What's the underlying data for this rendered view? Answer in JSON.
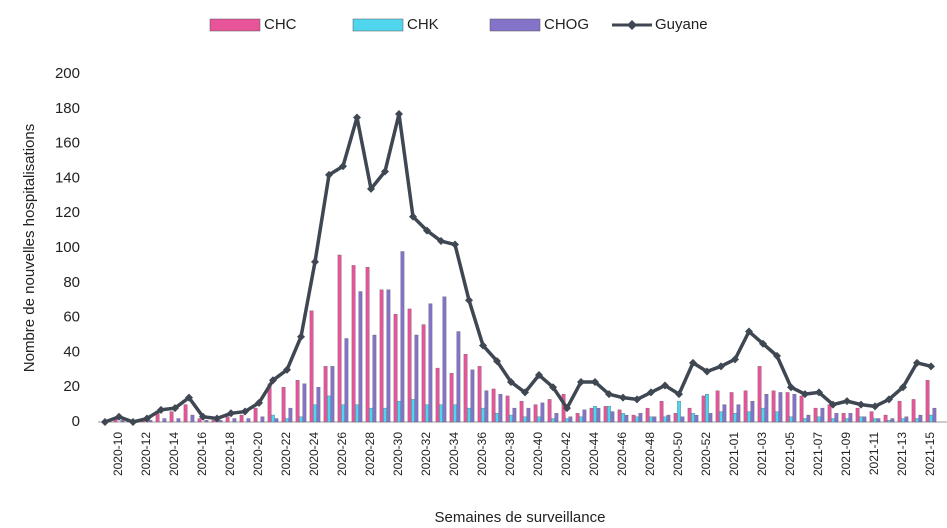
{
  "chart_data": {
    "type": "bar_line",
    "y_label": "Nombre de nouvelles hospitalisations",
    "x_label": "Semaines de surveillance",
    "categories": [
      null,
      "2020-10",
      null,
      "2020-12",
      null,
      "2020-14",
      null,
      "2020-16",
      null,
      "2020-18",
      null,
      "2020-20",
      null,
      "2020-22",
      null,
      "2020-24",
      null,
      "2020-26",
      null,
      "2020-28",
      null,
      "2020-30",
      null,
      "2020-32",
      null,
      "2020-34",
      null,
      "2020-36",
      null,
      "2020-38",
      null,
      "2020-40",
      null,
      "2020-42",
      null,
      "2020-44",
      null,
      "2020-46",
      null,
      "2020-48",
      null,
      "2020-50",
      null,
      "2020-52",
      null,
      "2021-01",
      null,
      "2021-03",
      null,
      "2021-05",
      null,
      "2021-07",
      null,
      "2021-09",
      null,
      "2021-11",
      null,
      "2021-13",
      null,
      "2021-15"
    ],
    "series": [
      {
        "name": "CHC",
        "type": "bar",
        "color": "#e8549a",
        "values": [
          0,
          2,
          0,
          1,
          5,
          6,
          10,
          2,
          1,
          3,
          4,
          8,
          22,
          20,
          24,
          64,
          32,
          96,
          90,
          89,
          76,
          62,
          65,
          56,
          31,
          28,
          39,
          32,
          19,
          15,
          12,
          10,
          13,
          16,
          5,
          8,
          9,
          7,
          4,
          8,
          12,
          5,
          8,
          15,
          18,
          17,
          18,
          32,
          18,
          17,
          15,
          8,
          10,
          5,
          8,
          6,
          4,
          12,
          13,
          24
        ]
      },
      {
        "name": "CHK",
        "type": "bar",
        "color": "#4fd6ee",
        "values": [
          0,
          0,
          0,
          0,
          0,
          0,
          0,
          0,
          0,
          0,
          0,
          0,
          4,
          2,
          3,
          10,
          15,
          10,
          10,
          8,
          8,
          12,
          13,
          10,
          10,
          10,
          8,
          8,
          5,
          4,
          3,
          3,
          2,
          2,
          3,
          9,
          9,
          5,
          3,
          3,
          3,
          12,
          5,
          16,
          6,
          5,
          6,
          8,
          6,
          3,
          2,
          3,
          2,
          2,
          3,
          2,
          1,
          2,
          2,
          4
        ]
      },
      {
        "name": "CHOG",
        "type": "bar",
        "color": "#8473c9",
        "values": [
          0,
          1,
          0,
          1,
          2,
          2,
          4,
          1,
          1,
          2,
          2,
          3,
          2,
          8,
          22,
          20,
          32,
          48,
          75,
          50,
          76,
          98,
          50,
          68,
          72,
          52,
          30,
          18,
          16,
          8,
          8,
          11,
          5,
          3,
          7,
          8,
          6,
          4,
          5,
          3,
          4,
          3,
          4,
          5,
          10,
          10,
          12,
          16,
          17,
          16,
          4,
          8,
          5,
          5,
          3,
          2,
          2,
          3,
          4,
          8
        ]
      },
      {
        "name": "Guyane",
        "type": "line",
        "color": "#3e4752",
        "values": [
          0,
          3,
          0,
          2,
          7,
          8,
          14,
          3,
          2,
          5,
          6,
          11,
          24,
          30,
          49,
          92,
          142,
          147,
          175,
          134,
          144,
          177,
          118,
          110,
          104,
          102,
          70,
          44,
          35,
          23,
          17,
          27,
          20,
          8,
          23,
          23,
          16,
          14,
          13,
          17,
          21,
          16,
          34,
          29,
          32,
          36,
          52,
          45,
          38,
          20,
          16,
          17,
          10,
          12,
          10,
          9,
          13,
          20,
          34,
          32
        ]
      }
    ],
    "ylim": [
      0,
      200
    ],
    "yticks": [
      0,
      20,
      40,
      60,
      80,
      100,
      120,
      140,
      160,
      180,
      200
    ],
    "grid": false
  }
}
